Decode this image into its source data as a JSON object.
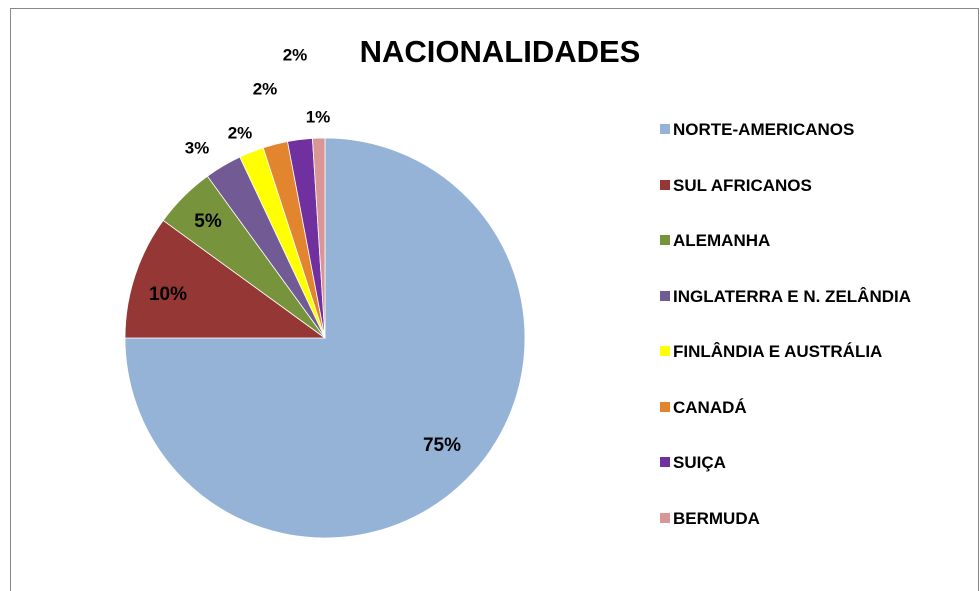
{
  "chart_data": {
    "type": "pie",
    "title": "NACIONALIDADES",
    "categories": [
      "NORTE-AMERICANOS",
      "SUL AFRICANOS",
      "ALEMANHA",
      "INGLATERRA E N. ZELÂNDIA",
      "FINLÂNDIA E AUSTRÁLIA",
      "CANADÁ",
      "SUIÇA",
      "BERMUDA"
    ],
    "values": [
      75,
      10,
      5,
      3,
      2,
      2,
      2,
      1
    ],
    "value_labels": [
      "75%",
      "10%",
      "5%",
      "3%",
      "2%",
      "2%",
      "2%",
      "1%"
    ],
    "colors": [
      "#95b3d7",
      "#953735",
      "#77933c",
      "#725a94",
      "#ffff00",
      "#e3842f",
      "#7030a0",
      "#d99694"
    ],
    "legend": "right"
  }
}
